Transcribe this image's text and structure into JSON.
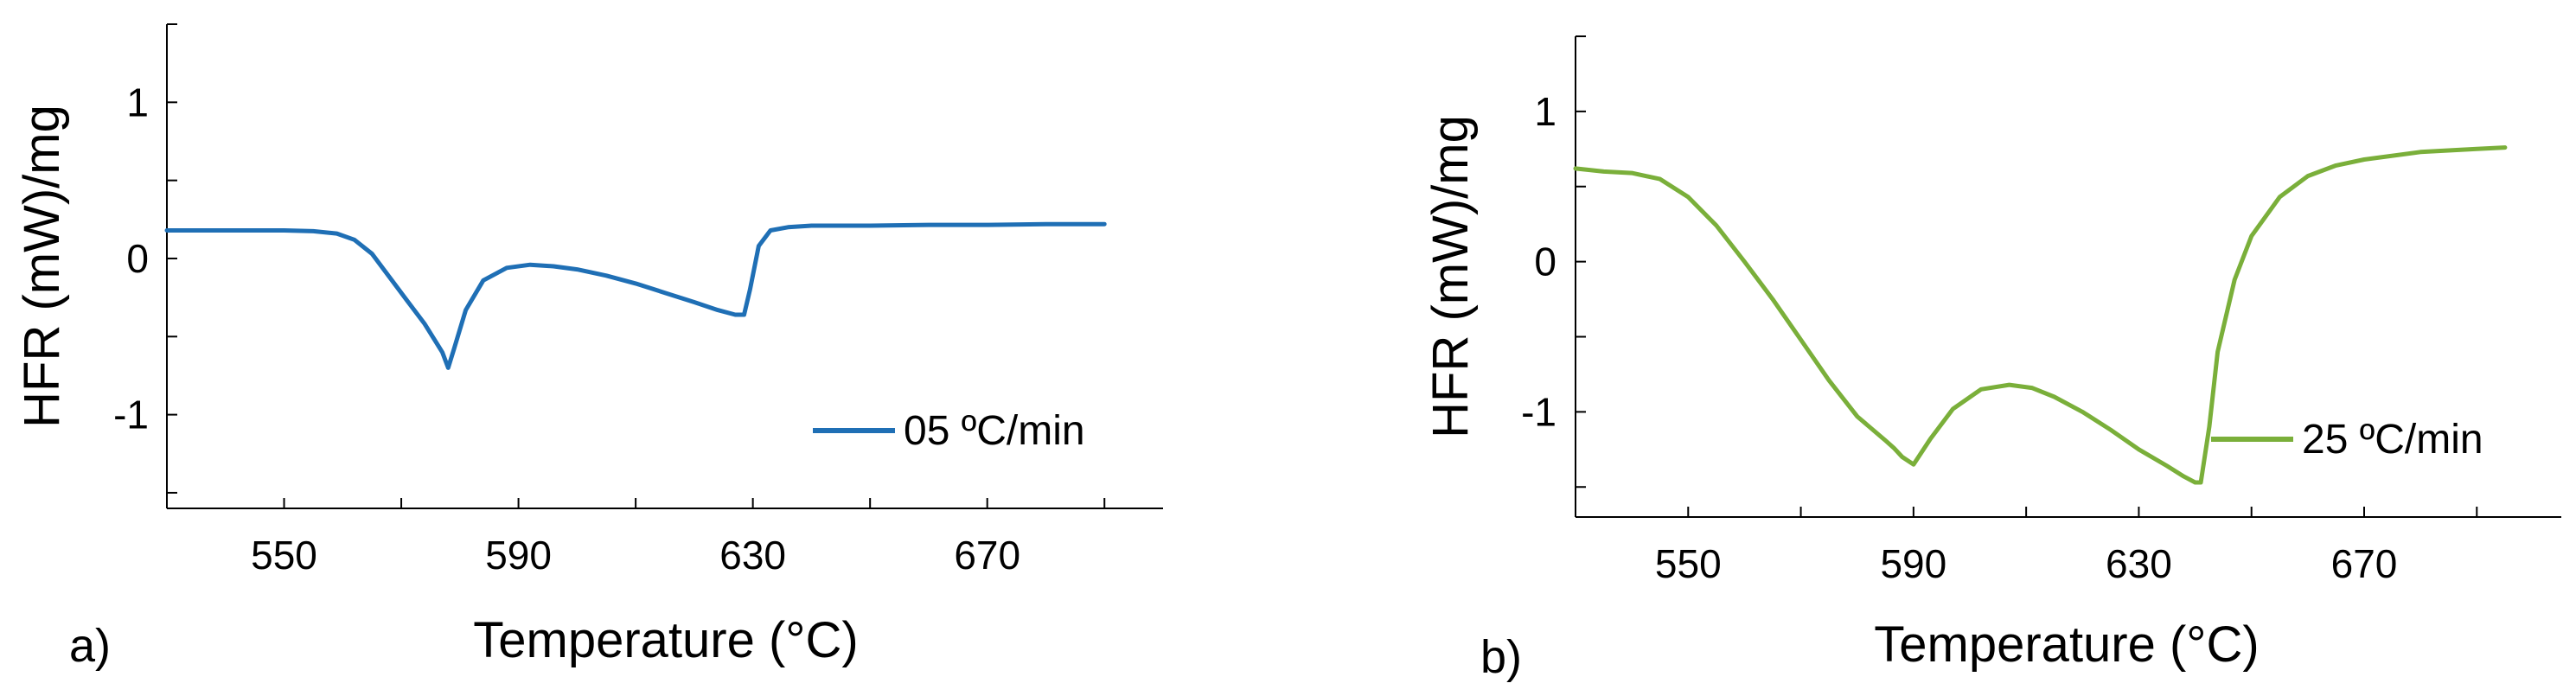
{
  "chart_data": [
    {
      "type": "line",
      "panel_label": "a)",
      "xlabel": "Temperature (°C)",
      "ylabel": "HFR (mW)/mg",
      "xlim": [
        530,
        700
      ],
      "ylim": [
        -1.6,
        1.5
      ],
      "xticks": [
        550,
        590,
        630,
        670
      ],
      "yticks": [
        1,
        0,
        -1
      ],
      "legend_position": "bottom-right",
      "grid": false,
      "color": "#1f6fb5",
      "series": [
        {
          "name": "05 ºC/min",
          "x": [
            530,
            540,
            550,
            555,
            559,
            562,
            565,
            568,
            571,
            574,
            577,
            578,
            579,
            581,
            584,
            588,
            592,
            596,
            600,
            605,
            610,
            615,
            620,
            624,
            627,
            628.5,
            629.5,
            631,
            633,
            636,
            640,
            650,
            660,
            670,
            680,
            690
          ],
          "values": [
            0.18,
            0.18,
            0.18,
            0.175,
            0.16,
            0.12,
            0.03,
            -0.12,
            -0.27,
            -0.42,
            -0.6,
            -0.7,
            -0.58,
            -0.33,
            -0.14,
            -0.06,
            -0.04,
            -0.05,
            -0.07,
            -0.11,
            -0.16,
            -0.22,
            -0.28,
            -0.33,
            -0.36,
            -0.36,
            -0.2,
            0.08,
            0.18,
            0.2,
            0.21,
            0.21,
            0.215,
            0.215,
            0.22,
            0.22
          ]
        }
      ]
    },
    {
      "type": "line",
      "panel_label": "b)",
      "xlabel": "Temperature (°C)",
      "ylabel": "HFR (mW)/mg",
      "xlim": [
        530,
        705
      ],
      "ylim": [
        -1.7,
        1.5
      ],
      "xticks": [
        550,
        590,
        630,
        670
      ],
      "yticks": [
        1,
        0,
        -1
      ],
      "legend_position": "bottom-right",
      "grid": false,
      "color": "#7aaf3a",
      "series": [
        {
          "name": "25 ºC/min",
          "x": [
            530,
            535,
            540,
            545,
            550,
            555,
            560,
            565,
            570,
            575,
            580,
            585,
            586.5,
            588,
            590,
            593,
            597,
            602,
            607,
            611,
            615,
            620,
            625,
            630,
            635,
            638,
            640,
            641,
            642.5,
            644,
            647,
            650,
            655,
            660,
            665,
            670,
            680,
            690,
            695
          ],
          "values": [
            0.62,
            0.6,
            0.59,
            0.55,
            0.43,
            0.24,
            0.0,
            -0.25,
            -0.52,
            -0.79,
            -1.03,
            -1.19,
            -1.24,
            -1.3,
            -1.35,
            -1.18,
            -0.98,
            -0.85,
            -0.82,
            -0.84,
            -0.9,
            -1.0,
            -1.12,
            -1.25,
            -1.36,
            -1.43,
            -1.47,
            -1.47,
            -1.1,
            -0.6,
            -0.12,
            0.17,
            0.43,
            0.57,
            0.64,
            0.68,
            0.73,
            0.75,
            0.76
          ]
        }
      ]
    }
  ]
}
